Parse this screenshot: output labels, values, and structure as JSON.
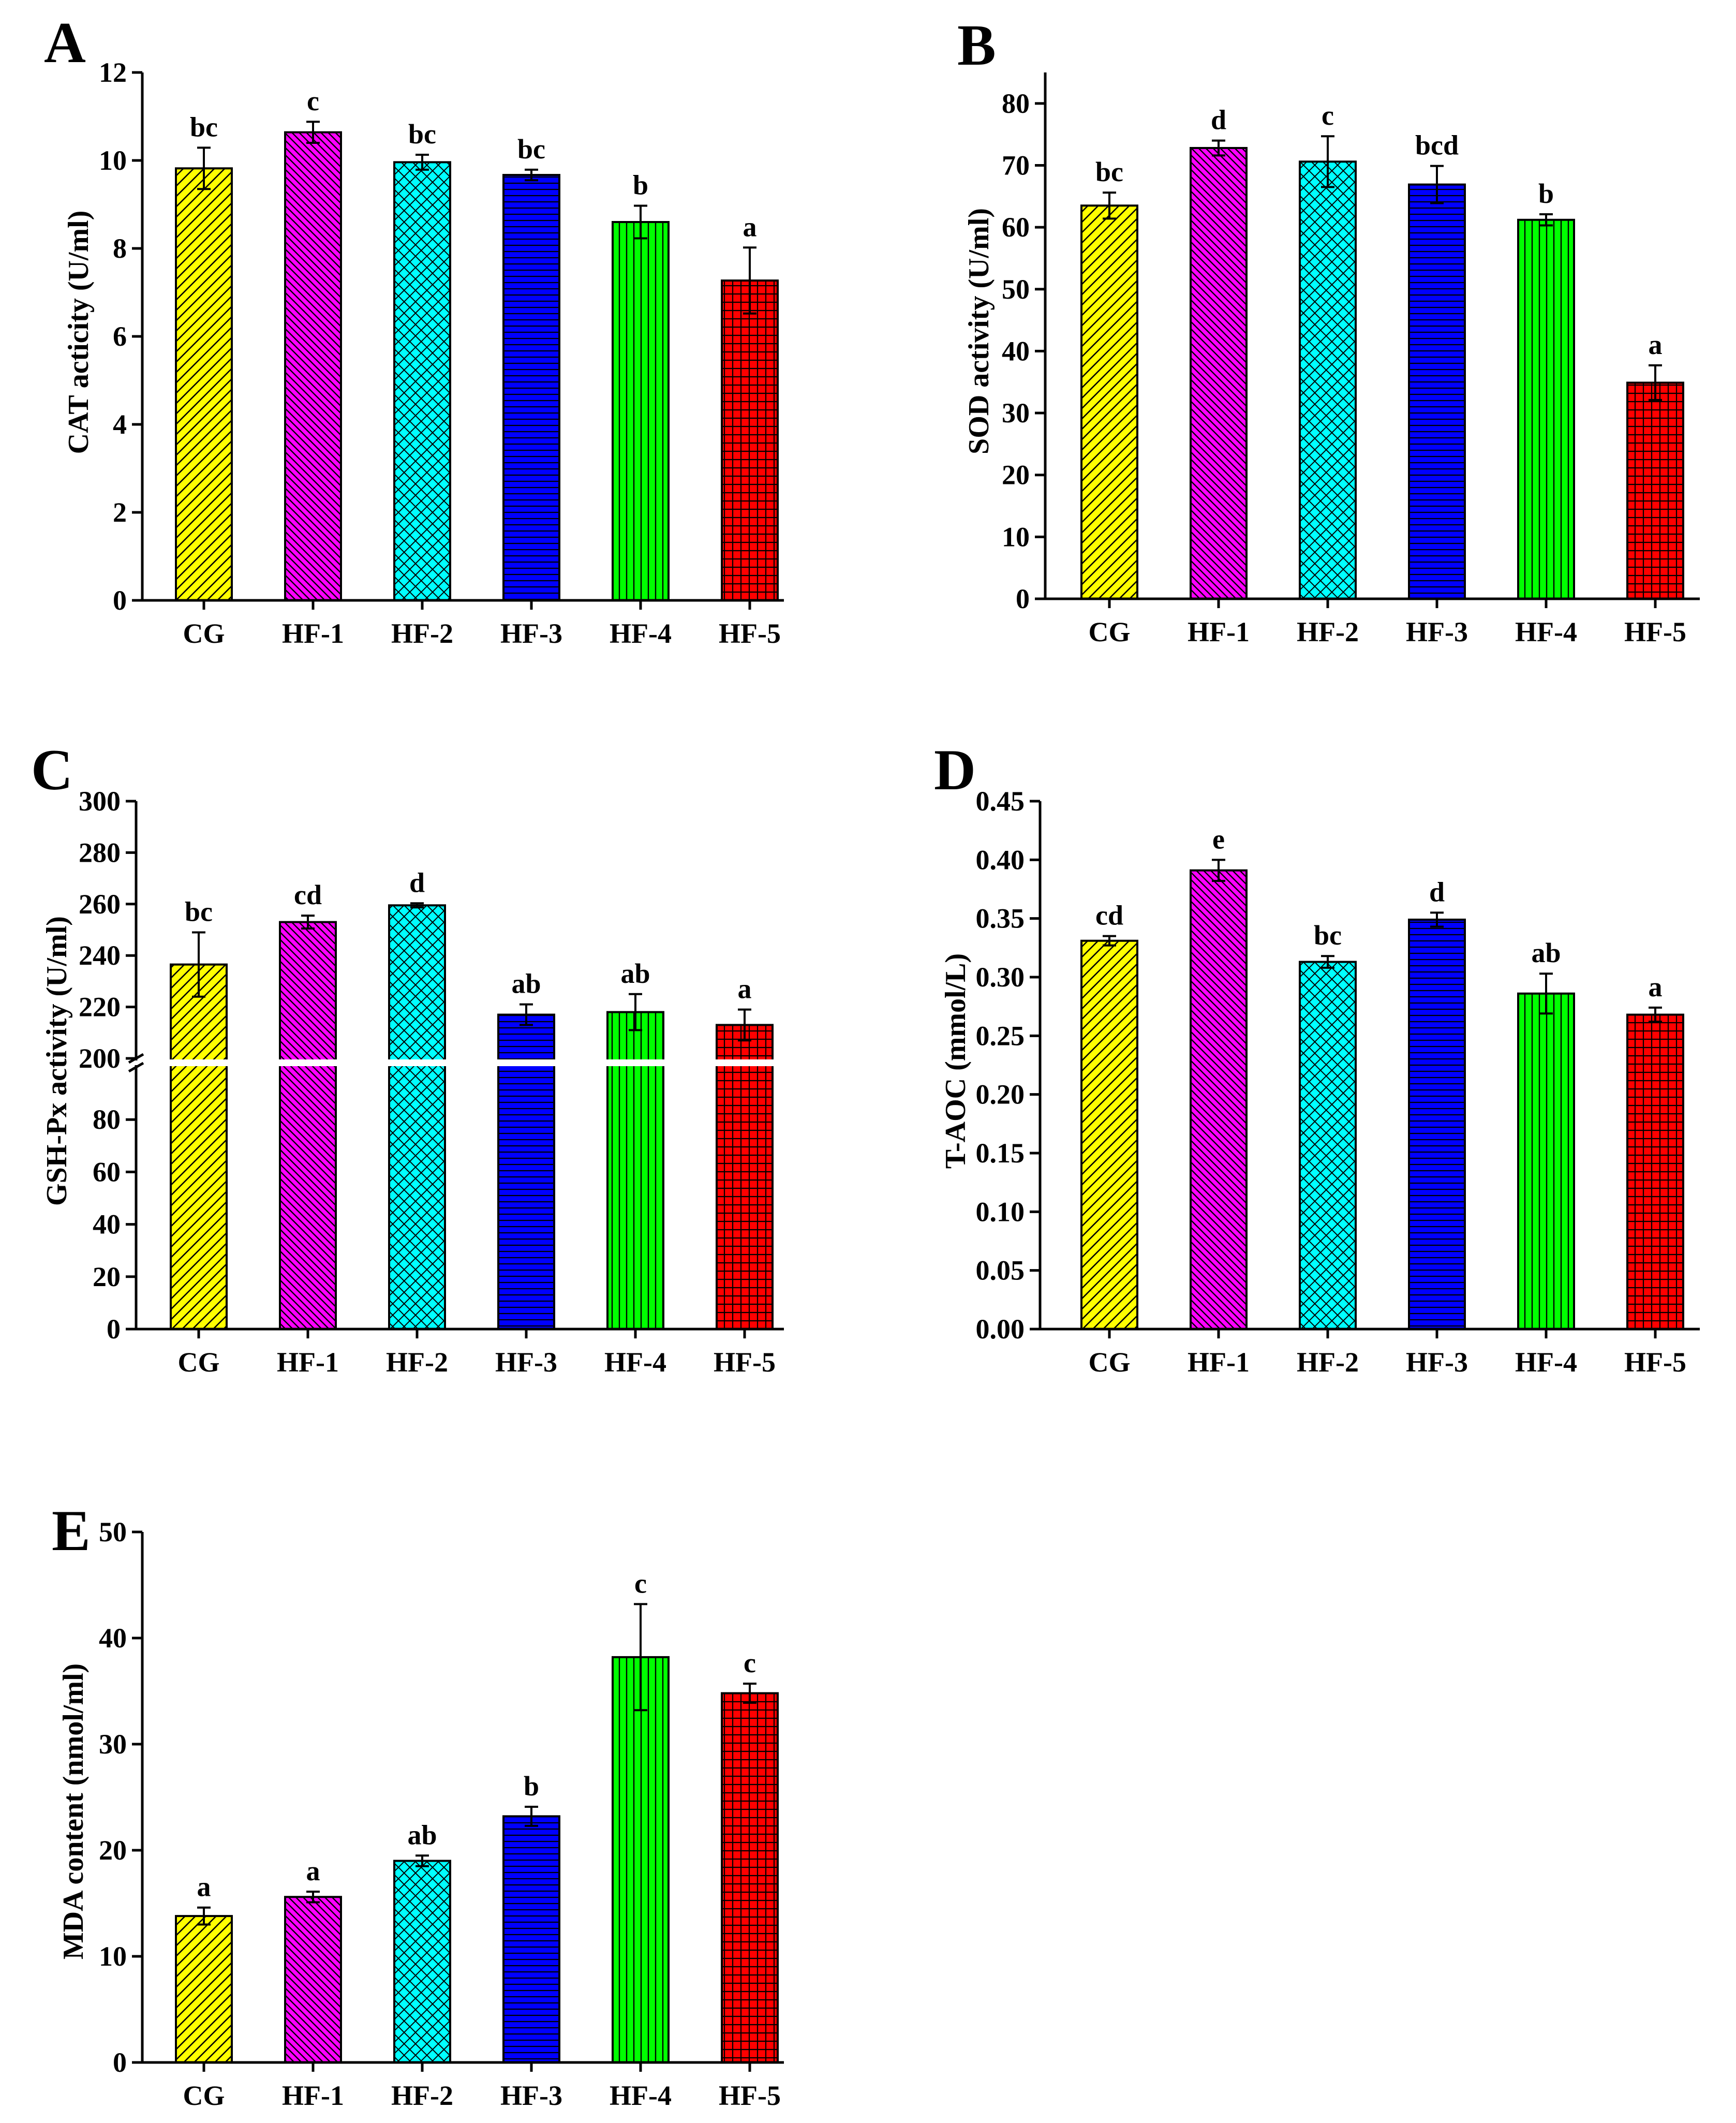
{
  "figure": {
    "panels": [
      "A",
      "B",
      "C",
      "D",
      "E"
    ]
  },
  "groups": [
    "CG",
    "HF-1",
    "HF-2",
    "HF-3",
    "HF-4",
    "HF-5"
  ],
  "colors": {
    "CG": "#ffff00",
    "HF-1": "#ff00ff",
    "HF-2": "#00ffff",
    "HF-3": "#0000ff",
    "HF-4": "#00ff00",
    "HF-5": "#ff0000",
    "hatch": "#000000"
  },
  "chart_data": [
    {
      "panel": "A",
      "type": "bar",
      "ylabel": "CAT acticity (U/ml)",
      "categories": [
        "CG",
        "HF-1",
        "HF-2",
        "HF-3",
        "HF-4",
        "HF-5"
      ],
      "values": [
        9.82,
        10.64,
        9.96,
        9.67,
        8.6,
        7.27
      ],
      "errors": [
        0.47,
        0.24,
        0.17,
        0.12,
        0.37,
        0.75
      ],
      "letters": [
        "bc",
        "c",
        "bc",
        "bc",
        "b",
        "a"
      ],
      "ylim": [
        0,
        12
      ],
      "yticks": [
        "0",
        "2",
        "4",
        "6",
        "8",
        "10",
        "12"
      ]
    },
    {
      "panel": "B",
      "type": "bar",
      "ylabel": "SOD activity (U/ml)",
      "categories": [
        "CG",
        "HF-1",
        "HF-2",
        "HF-3",
        "HF-4",
        "HF-5"
      ],
      "values": [
        63.5,
        72.8,
        70.6,
        66.9,
        61.2,
        34.9
      ],
      "errors": [
        2.1,
        1.2,
        4.1,
        3.0,
        0.9,
        2.8
      ],
      "letters": [
        "bc",
        "d",
        "c",
        "bcd",
        "b",
        "a"
      ],
      "ylim": [
        0,
        85
      ],
      "yticks": [
        "0",
        "10",
        "20",
        "30",
        "40",
        "50",
        "60",
        "70",
        "80"
      ]
    },
    {
      "panel": "C",
      "type": "bar",
      "broken_axis": true,
      "ylabel": "GSH-Px activity (U/ml)",
      "categories": [
        "CG",
        "HF-1",
        "HF-2",
        "HF-3",
        "HF-4",
        "HF-5"
      ],
      "values": [
        236.5,
        253.0,
        259.5,
        217.0,
        218.0,
        213.0
      ],
      "errors": [
        12.5,
        2.5,
        0.8,
        4.0,
        7.0,
        6.0
      ],
      "letters": [
        "bc",
        "cd",
        "d",
        "ab",
        "ab",
        "a"
      ],
      "ylim_lower": [
        0,
        100
      ],
      "ylim_upper": [
        200,
        300
      ],
      "yticks_lower": [
        "0",
        "20",
        "40",
        "60",
        "80"
      ],
      "yticks_upper": [
        "200",
        "220",
        "240",
        "260",
        "280",
        "300"
      ]
    },
    {
      "panel": "D",
      "type": "bar",
      "ylabel": "T-AOC (mmol/L)",
      "categories": [
        "CG",
        "HF-1",
        "HF-2",
        "HF-3",
        "HF-4",
        "HF-5"
      ],
      "values": [
        0.331,
        0.391,
        0.313,
        0.349,
        0.286,
        0.268
      ],
      "errors": [
        0.004,
        0.009,
        0.005,
        0.006,
        0.017,
        0.006
      ],
      "letters": [
        "cd",
        "e",
        "bc",
        "d",
        "ab",
        "a"
      ],
      "ylim": [
        0,
        0.45
      ],
      "yticks": [
        "0.00",
        "0.05",
        "0.10",
        "0.15",
        "0.20",
        "0.25",
        "0.30",
        "0.35",
        "0.40",
        "0.45"
      ]
    },
    {
      "panel": "E",
      "type": "bar",
      "ylabel": "MDA content (nmol/ml)",
      "categories": [
        "CG",
        "HF-1",
        "HF-2",
        "HF-3",
        "HF-4",
        "HF-5"
      ],
      "values": [
        13.8,
        15.6,
        19.0,
        23.2,
        38.2,
        34.8
      ],
      "errors": [
        0.8,
        0.5,
        0.5,
        0.9,
        5.0,
        0.9
      ],
      "letters": [
        "a",
        "a",
        "ab",
        "b",
        "c",
        "c"
      ],
      "ylim": [
        0,
        50
      ],
      "yticks": [
        "0",
        "10",
        "20",
        "30",
        "40",
        "50"
      ]
    }
  ]
}
